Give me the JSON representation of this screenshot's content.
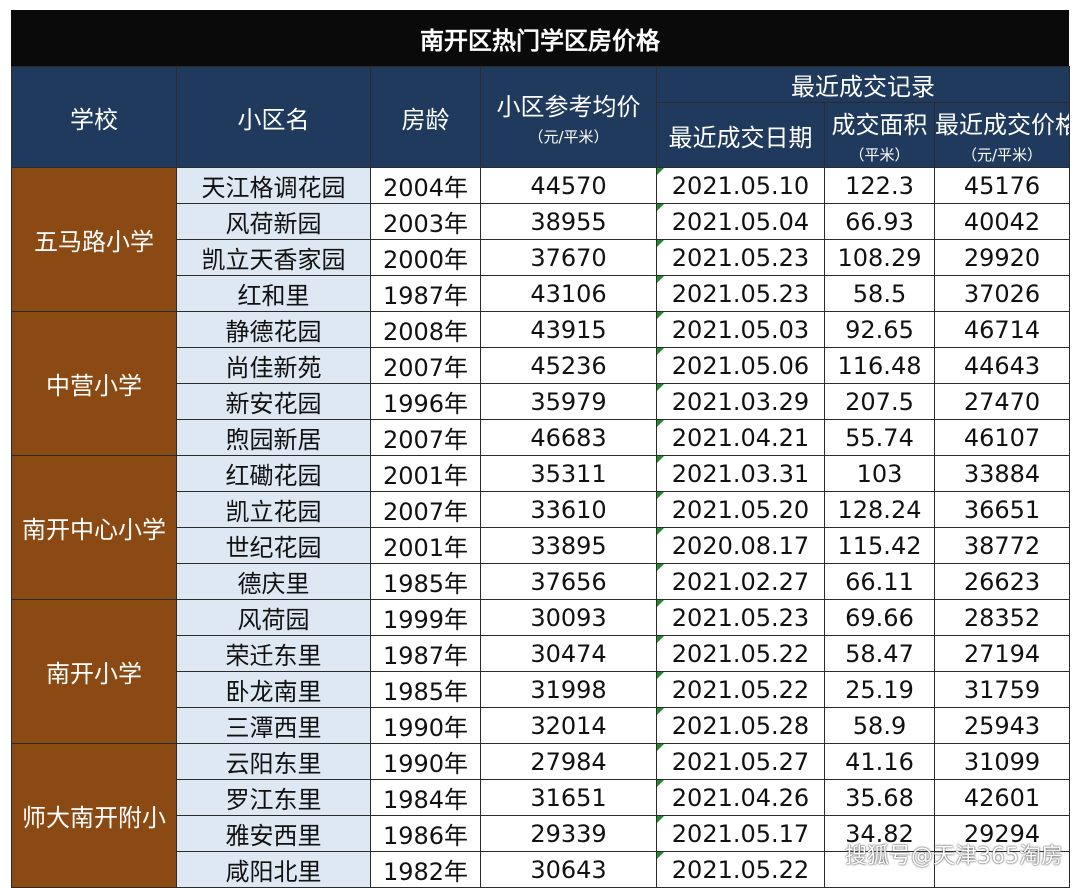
{
  "title": "南开区热门学区房价格",
  "headers": {
    "school": "学校",
    "community": "小区名",
    "age": "房龄",
    "avg_price": "小区参考均价",
    "avg_price_unit": "（元/平米）",
    "recent_group": "最近成交记录",
    "recent_date": "最近成交日期",
    "area": "成交面积",
    "area_unit": "（平米）",
    "deal_price": "最近成交价格",
    "deal_price_unit": "（元/平米）"
  },
  "groups": [
    {
      "school": "五马路小学",
      "rows": [
        [
          "天江格调花园",
          "2004年",
          "44570",
          "2021.05.10",
          "122.3",
          "45176"
        ],
        [
          "风荷新园",
          "2003年",
          "38955",
          "2021.05.04",
          "66.93",
          "40042"
        ],
        [
          "凯立天香家园",
          "2000年",
          "37670",
          "2021.05.23",
          "108.29",
          "29920"
        ],
        [
          "红和里",
          "1987年",
          "43106",
          "2021.05.23",
          "58.5",
          "37026"
        ]
      ]
    },
    {
      "school": "中营小学",
      "rows": [
        [
          "静德花园",
          "2008年",
          "43915",
          "2021.05.03",
          "92.65",
          "46714"
        ],
        [
          "尚佳新苑",
          "2007年",
          "45236",
          "2021.05.06",
          "116.48",
          "44643"
        ],
        [
          "新安花园",
          "1996年",
          "35979",
          "2021.03.29",
          "207.5",
          "27470"
        ],
        [
          "煦园新居",
          "2007年",
          "46683",
          "2021.04.21",
          "55.74",
          "46107"
        ]
      ]
    },
    {
      "school": "南开中心小学",
      "rows": [
        [
          "红磡花园",
          "2001年",
          "35311",
          "2021.03.31",
          "103",
          "33884"
        ],
        [
          "凯立花园",
          "2007年",
          "33610",
          "2021.05.20",
          "128.24",
          "36651"
        ],
        [
          "世纪花园",
          "2001年",
          "33895",
          "2020.08.17",
          "115.42",
          "38772"
        ],
        [
          "德庆里",
          "1985年",
          "37656",
          "2021.02.27",
          "66.11",
          "26623"
        ]
      ]
    },
    {
      "school": "南开小学",
      "rows": [
        [
          "风荷园",
          "1999年",
          "30093",
          "2021.05.23",
          "69.66",
          "28352"
        ],
        [
          "荣迁东里",
          "1987年",
          "30474",
          "2021.05.22",
          "58.47",
          "27194"
        ],
        [
          "卧龙南里",
          "1985年",
          "31998",
          "2021.05.22",
          "25.19",
          "31759"
        ],
        [
          "三潭西里",
          "1990年",
          "32014",
          "2021.05.28",
          "58.9",
          "25943"
        ]
      ]
    },
    {
      "school": "师大南开附小",
      "rows": [
        [
          "云阳东里",
          "1990年",
          "27984",
          "2021.05.27",
          "41.16",
          "31099"
        ],
        [
          "罗江东里",
          "1984年",
          "31651",
          "2021.04.26",
          "35.68",
          "42601"
        ],
        [
          "雅安西里",
          "1986年",
          "29339",
          "2021.05.17",
          "34.82",
          "29294"
        ],
        [
          "咸阳北里",
          "1982年",
          "30643",
          "2021.05.22",
          "",
          ""
        ]
      ]
    }
  ],
  "watermark": "搜狐号@天津365淘房",
  "colors": {
    "title_bg": "#0a0a0a",
    "header_bg": "#1f3a5c",
    "school_bg": "#8b4a14",
    "name_bg": "#dde8f3",
    "date_marker": "#1f8a2e"
  }
}
